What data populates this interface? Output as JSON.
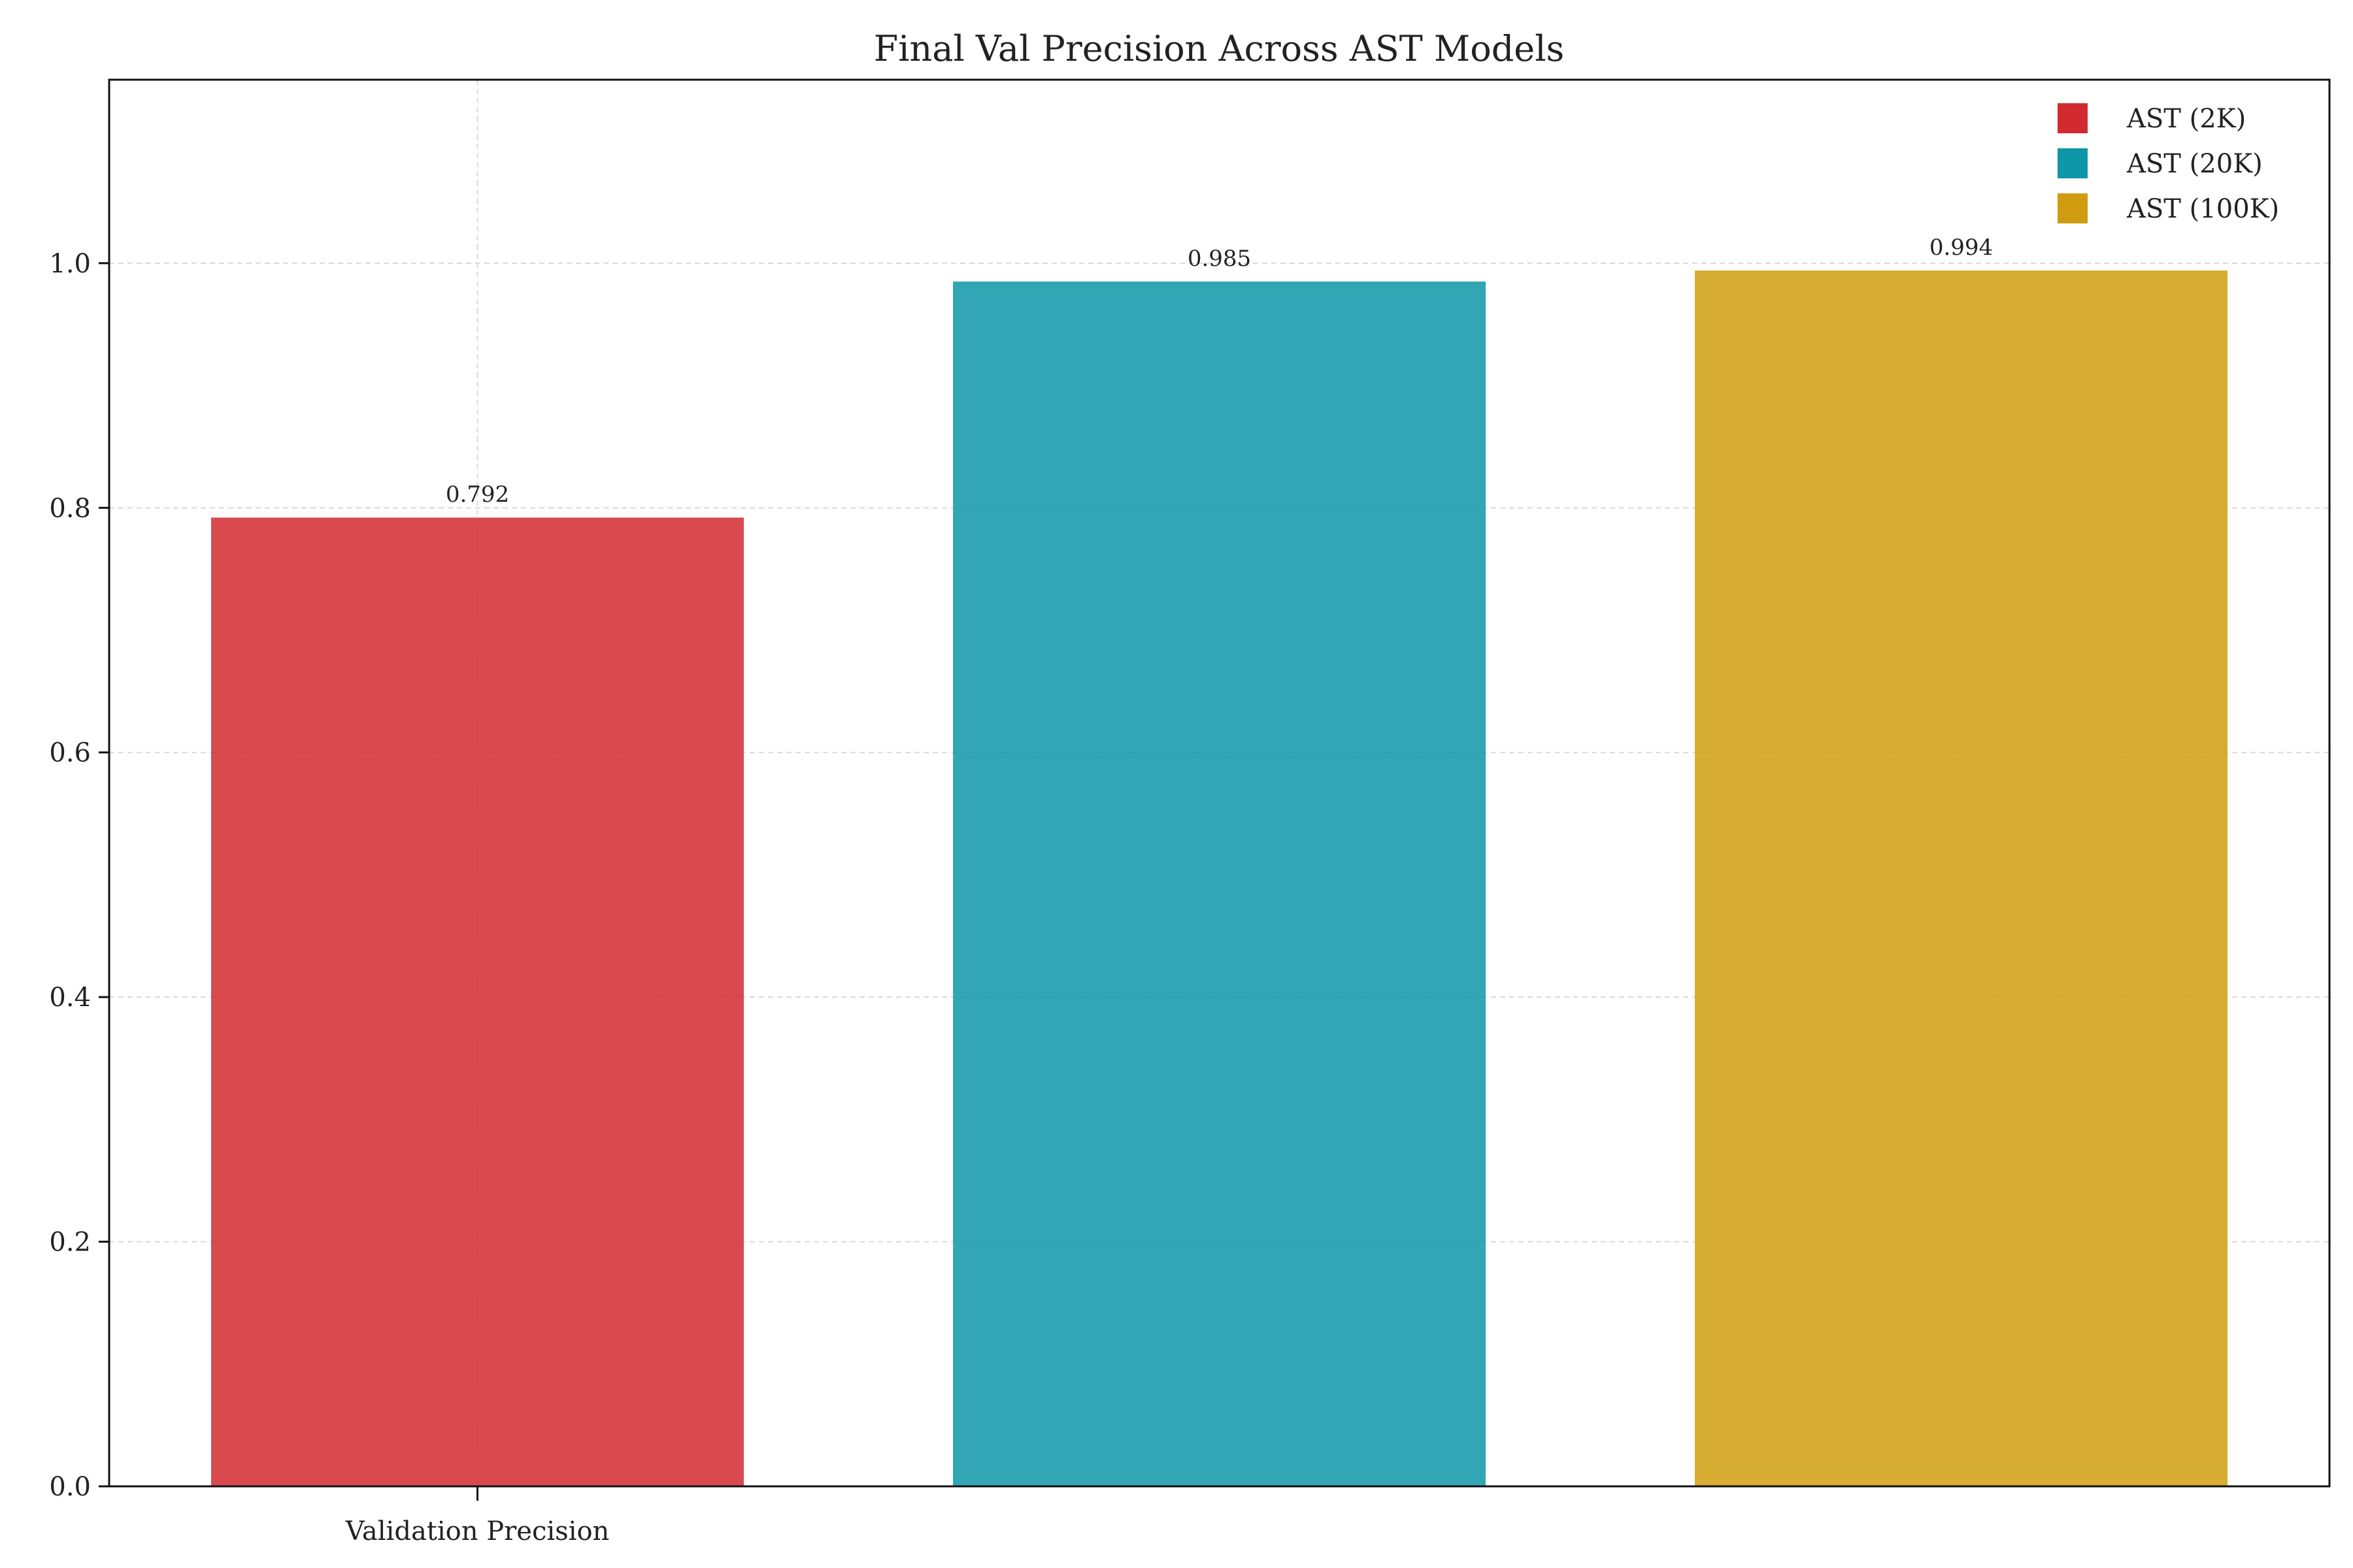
{
  "chart_data": {
    "type": "bar",
    "title": "Final Val Precision Across AST Models",
    "xlabel": "",
    "ylabel": "",
    "categories": [
      "Validation Precision"
    ],
    "series": [
      {
        "name": "AST (2K)",
        "values": [
          0.792
        ],
        "color": "#d12a2f"
      },
      {
        "name": "AST (20K)",
        "values": [
          0.985
        ],
        "color": "#0e97a8"
      },
      {
        "name": "AST (100K)",
        "values": [
          0.994
        ],
        "color": "#cf9d0f"
      }
    ],
    "data_labels": [
      "0.792",
      "0.985",
      "0.994"
    ],
    "ylim": [
      0,
      1.15
    ],
    "yticks": [
      0.0,
      0.2,
      0.4,
      0.6,
      0.8,
      1.0
    ],
    "ytick_labels": [
      "0.0",
      "0.2",
      "0.4",
      "0.6",
      "0.8",
      "1.0"
    ],
    "grid": true,
    "legend_position": "top-right",
    "bar_opacity": 0.85
  }
}
